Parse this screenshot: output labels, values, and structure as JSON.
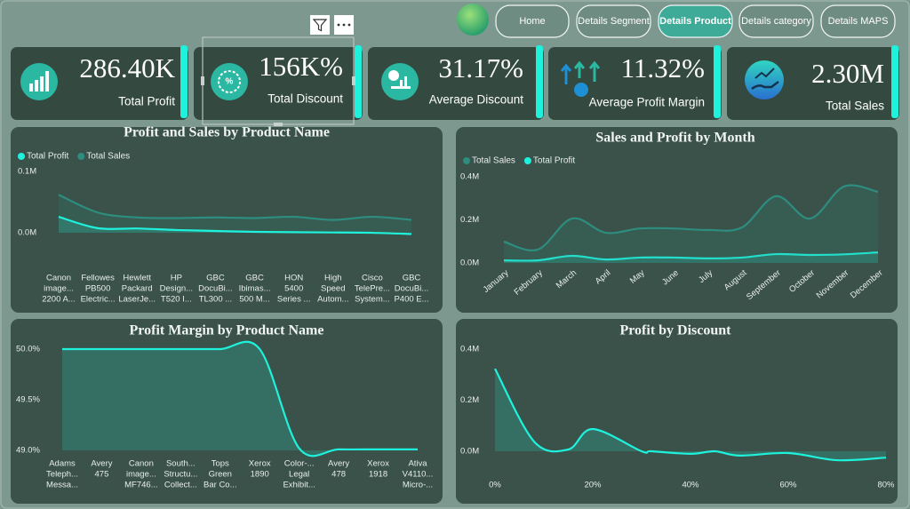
{
  "nav": {
    "buttons": [
      "Home",
      "Details Segment",
      "Details Product",
      "Details category",
      "Details MAPS"
    ],
    "active": 2
  },
  "kpis": [
    {
      "value": "286.40K",
      "label": "Total Profit"
    },
    {
      "value": "156K%",
      "label": "Total Discount"
    },
    {
      "value": "31.17%",
      "label": "Average Discount"
    },
    {
      "value": "11.32%",
      "label": "Average Profit Margin"
    },
    {
      "value": "2.30M",
      "label": "Total Sales"
    }
  ],
  "chart_data": [
    {
      "type": "area",
      "title": "Profit and Sales by Product Name",
      "categories": [
        [
          "Canon",
          "image...",
          "2200 A..."
        ],
        [
          "Fellowes",
          "PB500",
          "Electric..."
        ],
        [
          "Hewlett",
          "Packard",
          "LaserJe..."
        ],
        [
          "HP",
          "Design...",
          "T520 I..."
        ],
        [
          "GBC",
          "DocuBi...",
          "TL300 ..."
        ],
        [
          "GBC",
          "Ibimas...",
          "500 M..."
        ],
        [
          "HON",
          "5400",
          "Series ..."
        ],
        [
          "High",
          "Speed",
          "Autom..."
        ],
        [
          "Cisco",
          "TelePre...",
          "System..."
        ],
        [
          "GBC",
          "DocuBi...",
          "P400 E..."
        ]
      ],
      "series": [
        {
          "name": "Total Profit",
          "color": "#1ff2dc",
          "values": [
            26000,
            7500,
            7000,
            4500,
            3000,
            1500,
            1000,
            500,
            0,
            -2000
          ]
        },
        {
          "name": "Total Sales",
          "color": "#2d8d7f",
          "values": [
            62000,
            33000,
            25000,
            24000,
            25000,
            24000,
            26000,
            21000,
            26000,
            21000
          ]
        }
      ],
      "ylim": [
        -5000,
        105000
      ],
      "yticks": [
        {
          "value": 100000,
          "label": "0.1M"
        },
        {
          "value": 0,
          "label": "0.0M"
        }
      ],
      "grid": false
    },
    {
      "type": "area",
      "title": "Sales and Profit by Month",
      "categories": [
        "January",
        "February",
        "March",
        "April",
        "May",
        "June",
        "July",
        "August",
        "September",
        "October",
        "November",
        "December"
      ],
      "series": [
        {
          "name": "Total Sales",
          "color": "#2d8d7f",
          "values": [
            99000,
            62000,
            206000,
            140000,
            160000,
            160000,
            153000,
            165000,
            310000,
            206000,
            355000,
            330000
          ]
        },
        {
          "name": "Total Profit",
          "color": "#1ff2dc",
          "values": [
            12000,
            12000,
            33000,
            16000,
            25000,
            25000,
            21000,
            25000,
            41000,
            37000,
            40000,
            49000
          ]
        }
      ],
      "ylim": [
        0,
        400000
      ],
      "yticks": [
        {
          "value": 400000,
          "label": "0.4M"
        },
        {
          "value": 200000,
          "label": "0.2M"
        },
        {
          "value": 0,
          "label": "0.0M"
        }
      ],
      "grid": false
    },
    {
      "type": "area",
      "title": "Profit Margin by Product Name",
      "categories": [
        [
          "Adams",
          "Teleph...",
          "Messa..."
        ],
        [
          "Avery",
          "475"
        ],
        [
          "Canon",
          "image...",
          "MF746..."
        ],
        [
          "South...",
          "Structu...",
          "Collect..."
        ],
        [
          "Tops",
          "Green",
          "Bar Co..."
        ],
        [
          "Xerox",
          "1890"
        ],
        [
          "Color-...",
          "Legal",
          "Exhibit..."
        ],
        [
          "Avery",
          "478"
        ],
        [
          "Xerox",
          "1918"
        ],
        [
          "Ativa",
          "V4110...",
          "Micro-..."
        ]
      ],
      "values": [
        50,
        50,
        50,
        50,
        50,
        50,
        49.02,
        49.01,
        49.01,
        49.01
      ],
      "color": "#1ff2dc",
      "ylim": [
        49,
        50
      ],
      "yticks": [
        {
          "value": 50,
          "label": "50.0%"
        },
        {
          "value": 49.5,
          "label": "49.5%"
        },
        {
          "value": 49,
          "label": "49.0%"
        }
      ],
      "grid": false
    },
    {
      "type": "area",
      "title": "Profit by Discount",
      "x": [
        0,
        8,
        15,
        20,
        30,
        32,
        40,
        45,
        50,
        60,
        70,
        80
      ],
      "values": [
        323000,
        38000,
        7000,
        87000,
        0,
        0,
        -10000,
        0,
        -17000,
        -7000,
        -35000,
        -25000
      ],
      "color": "#1ff2dc",
      "xlim": [
        0,
        80
      ],
      "xticks": [
        {
          "value": 0,
          "label": "0%"
        },
        {
          "value": 20,
          "label": "20%"
        },
        {
          "value": 40,
          "label": "40%"
        },
        {
          "value": 60,
          "label": "60%"
        },
        {
          "value": 80,
          "label": "80%"
        }
      ],
      "ylim": [
        -40000,
        400000
      ],
      "yticks": [
        {
          "value": 400000,
          "label": "0.4M"
        },
        {
          "value": 200000,
          "label": "0.2M"
        },
        {
          "value": 0,
          "label": "0.0M"
        }
      ],
      "grid": false
    }
  ]
}
